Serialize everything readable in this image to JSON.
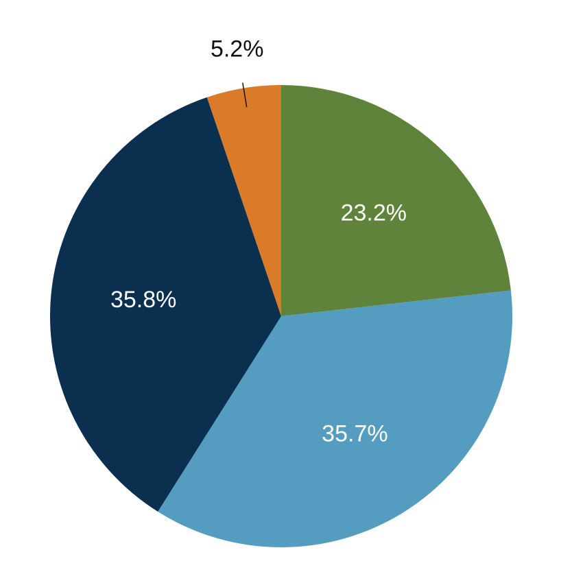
{
  "chart_data": {
    "type": "pie",
    "start_angle_deg": 0,
    "direction": "clockwise",
    "slices": [
      {
        "label": "23.2%",
        "value": 23.2,
        "color": "#5f833a",
        "label_color": "#ffffff"
      },
      {
        "label": "35.7%",
        "value": 35.7,
        "color": "#549cc0",
        "label_color": "#ffffff"
      },
      {
        "label": "35.8%",
        "value": 35.8,
        "color": "#0b2f4f",
        "label_color": "#ffffff"
      },
      {
        "label": "5.2%",
        "value": 5.2,
        "color": "#d97b29",
        "label_color": "#111111",
        "label_outside": true
      }
    ]
  }
}
